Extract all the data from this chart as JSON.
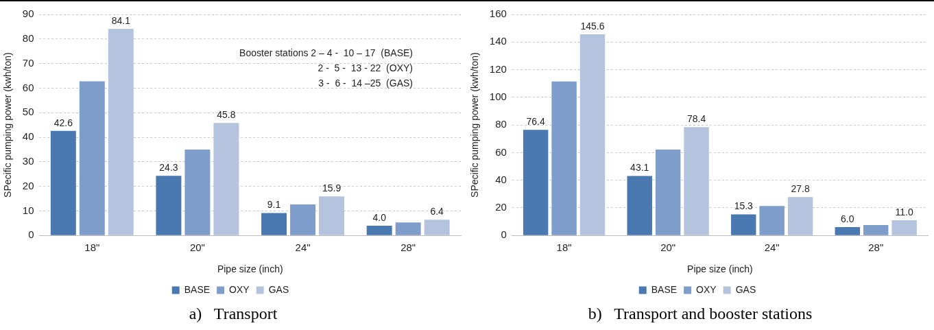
{
  "chart_data": [
    {
      "type": "bar",
      "title": "a)   Transport",
      "xlabel": "Pipe size (inch)",
      "ylabel": "SPecific pumping power (kwh/ton)",
      "categories": [
        "18\"",
        "20\"",
        "24\"",
        "28\""
      ],
      "series": [
        {
          "name": "BASE",
          "color": "#4a78b0",
          "values": [
            42.6,
            24.3,
            9.1,
            4.0
          ],
          "value_labels": [
            "42.6",
            "24.3",
            "9.1",
            "4.0"
          ]
        },
        {
          "name": "OXY",
          "color": "#7f9dca",
          "values": [
            62.8,
            35,
            12.6,
            5.3
          ]
        },
        {
          "name": "GAS",
          "color": "#b4c3de",
          "values": [
            84.1,
            45.8,
            15.9,
            6.4
          ],
          "value_labels": [
            "84.1",
            "45.8",
            "15.9",
            "6.4"
          ]
        }
      ],
      "ylim": [
        0,
        90
      ],
      "yticks": [
        0,
        10,
        20,
        30,
        40,
        50,
        60,
        70,
        80,
        90
      ],
      "grid": "y",
      "legend": "bottom",
      "annotations": [
        "Booster stations 2 – 4 -  10 – 17  (BASE)",
        "2 -  5 -  13 - 22  (OXY)",
        "3 -  6 -  14 –25  (GAS)"
      ]
    },
    {
      "type": "bar",
      "title": "b)   Transport and booster stations",
      "xlabel": "Pipe size (inch)",
      "ylabel": "SPecific pumping power (kwh/ton)",
      "categories": [
        "18\"",
        "20\"",
        "24\"",
        "28\""
      ],
      "series": [
        {
          "name": "BASE",
          "color": "#4a78b0",
          "values": [
            76.4,
            43.1,
            15.3,
            6.0
          ],
          "value_labels": [
            "76.4",
            "43.1",
            "15.3",
            "6.0"
          ]
        },
        {
          "name": "OXY",
          "color": "#7f9dca",
          "values": [
            111.5,
            62.2,
            21.3,
            7.5
          ]
        },
        {
          "name": "GAS",
          "color": "#b4c3de",
          "values": [
            145.6,
            78.4,
            27.8,
            11.0
          ],
          "value_labels": [
            "145.6",
            "78.4",
            "27.8",
            "11.0"
          ]
        }
      ],
      "ylim": [
        0,
        160
      ],
      "yticks": [
        0,
        20,
        40,
        60,
        80,
        100,
        120,
        140,
        160
      ],
      "grid": "y",
      "legend": "bottom"
    }
  ]
}
